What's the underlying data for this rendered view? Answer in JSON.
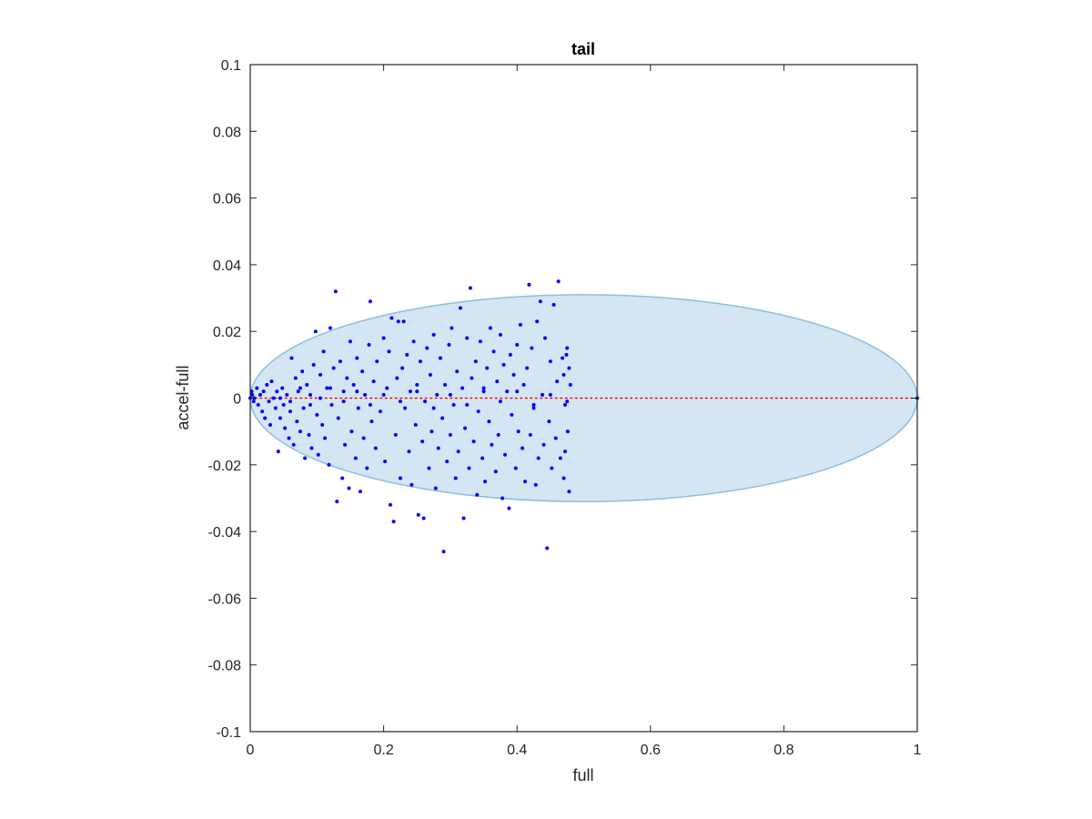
{
  "chart_data": {
    "type": "scatter",
    "title": "tail",
    "xlabel": "full",
    "ylabel": "accel-full",
    "xlim": [
      0,
      1
    ],
    "ylim": [
      -0.1,
      0.1
    ],
    "xticks": [
      0,
      0.2,
      0.4,
      0.6,
      0.8,
      1
    ],
    "xtick_labels": [
      "0",
      "0.2",
      "0.4",
      "0.6",
      "0.8",
      "1"
    ],
    "yticks": [
      -0.1,
      -0.08,
      -0.06,
      -0.04,
      -0.02,
      0,
      0.02,
      0.04,
      0.06,
      0.08,
      0.1
    ],
    "ytick_labels": [
      "-0.1",
      "-0.08",
      "-0.06",
      "-0.04",
      "-0.02",
      "0",
      "0.02",
      "0.04",
      "0.06",
      "0.08",
      "0.1"
    ],
    "grid": false,
    "ellipse": {
      "center": [
        0.5,
        0
      ],
      "semi_axes": [
        0.5,
        0.031
      ],
      "fill": "#d4e6f3",
      "edge": "#8dbddd"
    },
    "reference_line": {
      "y": 0,
      "x_range": [
        0,
        1
      ],
      "color": "#ff0000",
      "style": "dotted"
    },
    "series": [
      {
        "marker_color": "#0000ff",
        "points": [
          [
            0.0,
            0.0
          ],
          [
            0.003,
            0.001
          ],
          [
            0.005,
            -0.001
          ],
          [
            0.002,
            0.002
          ],
          [
            0.006,
            0.0
          ],
          [
            1.0,
            0.0
          ],
          [
            0.01,
            0.003
          ],
          [
            0.012,
            -0.002
          ],
          [
            0.015,
            0.001
          ],
          [
            0.018,
            -0.004
          ],
          [
            0.02,
            0.002
          ],
          [
            0.022,
            -0.006
          ],
          [
            0.025,
            0.004
          ],
          [
            0.028,
            -0.001
          ],
          [
            0.03,
            -0.008
          ],
          [
            0.032,
            0.005
          ],
          [
            0.035,
            0.0
          ],
          [
            0.038,
            -0.003
          ],
          [
            0.04,
            0.002
          ],
          [
            0.042,
            -0.016
          ],
          [
            0.045,
            -0.006
          ],
          [
            0.048,
            0.003
          ],
          [
            0.05,
            -0.002
          ],
          [
            0.052,
            -0.009
          ],
          [
            0.055,
            0.001
          ],
          [
            0.058,
            -0.012
          ],
          [
            0.06,
            -0.004
          ],
          [
            0.062,
            0.012
          ],
          [
            0.065,
            -0.014
          ],
          [
            0.068,
            0.006
          ],
          [
            0.07,
            -0.007
          ],
          [
            0.072,
            0.002
          ],
          [
            0.075,
            -0.01
          ],
          [
            0.078,
            0.008
          ],
          [
            0.08,
            -0.003
          ],
          [
            0.082,
            -0.018
          ],
          [
            0.085,
            0.004
          ],
          [
            0.088,
            -0.011
          ],
          [
            0.09,
            0.001
          ],
          [
            0.092,
            -0.015
          ],
          [
            0.095,
            0.01
          ],
          [
            0.098,
            0.02
          ],
          [
            0.1,
            -0.005
          ],
          [
            0.102,
            -0.017
          ],
          [
            0.105,
            0.007
          ],
          [
            0.108,
            -0.008
          ],
          [
            0.11,
            0.014
          ],
          [
            0.112,
            -0.012
          ],
          [
            0.115,
            0.003
          ],
          [
            0.118,
            -0.02
          ],
          [
            0.12,
            0.021
          ],
          [
            0.122,
            -0.002
          ],
          [
            0.125,
            0.009
          ],
          [
            0.128,
            0.032
          ],
          [
            0.13,
            -0.031
          ],
          [
            0.132,
            -0.006
          ],
          [
            0.135,
            0.011
          ],
          [
            0.138,
            -0.024
          ],
          [
            0.14,
            0.002
          ],
          [
            0.142,
            -0.014
          ],
          [
            0.145,
            0.006
          ],
          [
            0.148,
            -0.027
          ],
          [
            0.15,
            0.017
          ],
          [
            0.152,
            -0.01
          ],
          [
            0.155,
            0.004
          ],
          [
            0.158,
            -0.018
          ],
          [
            0.16,
            0.012
          ],
          [
            0.162,
            -0.003
          ],
          [
            0.165,
            -0.028
          ],
          [
            0.168,
            0.008
          ],
          [
            0.17,
            -0.012
          ],
          [
            0.172,
            0.001
          ],
          [
            0.175,
            -0.021
          ],
          [
            0.178,
            0.016
          ],
          [
            0.18,
            0.029
          ],
          [
            0.182,
            -0.007
          ],
          [
            0.185,
            0.005
          ],
          [
            0.188,
            -0.015
          ],
          [
            0.19,
            0.011
          ],
          [
            0.195,
            -0.004
          ],
          [
            0.2,
            0.018
          ],
          [
            0.202,
            -0.019
          ],
          [
            0.205,
            0.003
          ],
          [
            0.208,
            0.014
          ],
          [
            0.21,
            -0.032
          ],
          [
            0.212,
            0.024
          ],
          [
            0.215,
            -0.037
          ],
          [
            0.218,
            -0.011
          ],
          [
            0.22,
            0.006
          ],
          [
            0.222,
            0.023
          ],
          [
            0.225,
            -0.024
          ],
          [
            0.228,
            0.009
          ],
          [
            0.23,
            0.023
          ],
          [
            0.232,
            -0.003
          ],
          [
            0.235,
            0.013
          ],
          [
            0.238,
            -0.016
          ],
          [
            0.24,
            0.002
          ],
          [
            0.242,
            -0.026
          ],
          [
            0.245,
            0.017
          ],
          [
            0.248,
            -0.008
          ],
          [
            0.25,
            0.004
          ],
          [
            0.252,
            -0.035
          ],
          [
            0.255,
            0.011
          ],
          [
            0.258,
            -0.013
          ],
          [
            0.26,
            -0.036
          ],
          [
            0.262,
            -0.001
          ],
          [
            0.265,
            0.015
          ],
          [
            0.268,
            -0.021
          ],
          [
            0.27,
            0.007
          ],
          [
            0.272,
            -0.01
          ],
          [
            0.275,
            0.019
          ],
          [
            0.278,
            -0.027
          ],
          [
            0.28,
            0.001
          ],
          [
            0.282,
            -0.015
          ],
          [
            0.285,
            0.012
          ],
          [
            0.288,
            -0.006
          ],
          [
            0.29,
            -0.046
          ],
          [
            0.292,
            0.004
          ],
          [
            0.295,
            -0.019
          ],
          [
            0.298,
            0.016
          ],
          [
            0.3,
            -0.011
          ],
          [
            0.302,
            0.021
          ],
          [
            0.305,
            -0.002
          ],
          [
            0.308,
            -0.024
          ],
          [
            0.31,
            0.008
          ],
          [
            0.312,
            -0.016
          ],
          [
            0.315,
            0.027
          ],
          [
            0.318,
            0.003
          ],
          [
            0.32,
            -0.036
          ],
          [
            0.322,
            -0.009
          ],
          [
            0.325,
            0.018
          ],
          [
            0.328,
            -0.021
          ],
          [
            0.33,
            0.033
          ],
          [
            0.332,
            0.006
          ],
          [
            0.335,
            -0.013
          ],
          [
            0.338,
            0.011
          ],
          [
            0.34,
            -0.029
          ],
          [
            0.342,
            -0.004
          ],
          [
            0.345,
            0.017
          ],
          [
            0.348,
            -0.018
          ],
          [
            0.35,
            0.002
          ],
          [
            0.352,
            -0.025
          ],
          [
            0.355,
            0.009
          ],
          [
            0.358,
            -0.007
          ],
          [
            0.36,
            0.021
          ],
          [
            0.362,
            -0.014
          ],
          [
            0.365,
            0.014
          ],
          [
            0.368,
            -0.022
          ],
          [
            0.37,
            0.005
          ],
          [
            0.372,
            -0.011
          ],
          [
            0.375,
            0.019
          ],
          [
            0.378,
            -0.03
          ],
          [
            0.38,
            0.01
          ],
          [
            0.382,
            -0.017
          ],
          [
            0.385,
            0.002
          ],
          [
            0.388,
            -0.033
          ],
          [
            0.39,
            0.013
          ],
          [
            0.392,
            -0.005
          ],
          [
            0.395,
            0.007
          ],
          [
            0.398,
            -0.021
          ],
          [
            0.4,
            0.016
          ],
          [
            0.402,
            -0.01
          ],
          [
            0.405,
            0.022
          ],
          [
            0.408,
            -0.015
          ],
          [
            0.41,
            0.004
          ],
          [
            0.412,
            -0.025
          ],
          [
            0.415,
            0.009
          ],
          [
            0.418,
            0.034
          ],
          [
            0.42,
            -0.011
          ],
          [
            0.422,
            0.015
          ],
          [
            0.425,
            -0.003
          ],
          [
            0.428,
            -0.026
          ],
          [
            0.43,
            0.023
          ],
          [
            0.432,
            -0.018
          ],
          [
            0.435,
            0.029
          ],
          [
            0.438,
            0.001
          ],
          [
            0.44,
            -0.014
          ],
          [
            0.442,
            0.018
          ],
          [
            0.445,
            -0.045
          ],
          [
            0.448,
            -0.007
          ],
          [
            0.45,
            0.011
          ],
          [
            0.452,
            -0.021
          ],
          [
            0.455,
            0.028
          ],
          [
            0.458,
            -0.012
          ],
          [
            0.46,
            0.005
          ],
          [
            0.462,
            0.035
          ],
          [
            0.465,
            -0.018
          ],
          [
            0.468,
            0.012
          ],
          [
            0.47,
            -0.024
          ],
          [
            0.472,
            -0.002
          ],
          [
            0.475,
            0.015
          ],
          [
            0.478,
            -0.028
          ],
          [
            0.48,
            0.004
          ],
          [
            0.478,
            0.009
          ],
          [
            0.476,
            -0.01
          ],
          [
            0.474,
            0.013
          ],
          [
            0.472,
            -0.016
          ],
          [
            0.47,
            0.007
          ],
          [
            0.045,
            0.0
          ],
          [
            0.06,
            -0.001
          ],
          [
            0.075,
            0.003
          ],
          [
            0.09,
            -0.002
          ],
          [
            0.105,
            0.0
          ],
          [
            0.12,
            0.003
          ],
          [
            0.14,
            -0.001
          ],
          [
            0.16,
            0.002
          ],
          [
            0.18,
            -0.002
          ],
          [
            0.2,
            0.001
          ],
          [
            0.225,
            -0.001
          ],
          [
            0.25,
            0.002
          ],
          [
            0.275,
            -0.003
          ],
          [
            0.3,
            0.001
          ],
          [
            0.325,
            -0.002
          ],
          [
            0.35,
            0.003
          ],
          [
            0.375,
            -0.001
          ],
          [
            0.4,
            0.002
          ],
          [
            0.425,
            -0.002
          ],
          [
            0.45,
            0.001
          ],
          [
            0.475,
            -0.001
          ]
        ]
      }
    ]
  }
}
